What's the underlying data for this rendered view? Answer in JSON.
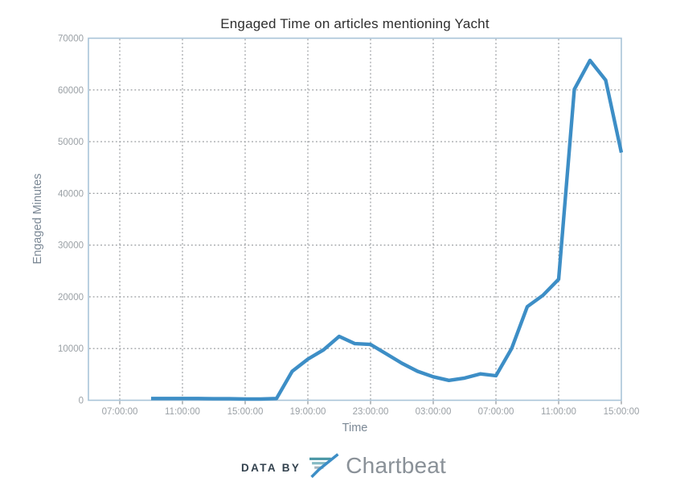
{
  "chart_data": {
    "type": "line",
    "title": "Engaged Time on articles mentioning Yacht",
    "xlabel": "Time",
    "ylabel": "Engaged Minutes",
    "ylim": [
      0,
      70000
    ],
    "y_tick_step": 10000,
    "y_tick_labels": [
      "0",
      "10000",
      "20000",
      "30000",
      "40000",
      "50000",
      "60000",
      "70000"
    ],
    "x_domain_hours": [
      5,
      39
    ],
    "x_ticks": [
      {
        "hour": 7,
        "label": "07:00:00"
      },
      {
        "hour": 11,
        "label": "11:00:00"
      },
      {
        "hour": 15,
        "label": "15:00:00"
      },
      {
        "hour": 19,
        "label": "19:00:00"
      },
      {
        "hour": 23,
        "label": "23:00:00"
      },
      {
        "hour": 27,
        "label": "03:00:00"
      },
      {
        "hour": 31,
        "label": "07:00:00"
      },
      {
        "hour": 35,
        "label": "11:00:00"
      },
      {
        "hour": 39,
        "label": "15:00:00"
      }
    ],
    "grid": "dotted, both axes, at every labeled tick",
    "legend_position": "none",
    "series": [
      {
        "name": "Engaged Minutes",
        "color": "#3d8ec6",
        "times": [
          "09:00:00",
          "10:00:00",
          "11:00:00",
          "12:00:00",
          "13:00:00",
          "14:00:00",
          "15:00:00",
          "16:00:00",
          "17:00:00",
          "18:00:00",
          "19:00:00",
          "20:00:00",
          "21:00:00",
          "22:00:00",
          "23:00:00",
          "00:00:00",
          "01:00:00",
          "02:00:00",
          "03:00:00",
          "04:00:00",
          "05:00:00",
          "06:00:00",
          "07:00:00",
          "08:00:00",
          "09:00:00",
          "10:00:00",
          "11:00:00",
          "12:00:00",
          "13:00:00",
          "14:00:00",
          "15:00:00"
        ],
        "hours": [
          9,
          10,
          11,
          12,
          13,
          14,
          15,
          16,
          17,
          18,
          19,
          20,
          21,
          22,
          23,
          24,
          25,
          26,
          27,
          28,
          29,
          30,
          31,
          32,
          33,
          34,
          35,
          36,
          37,
          38,
          39
        ],
        "values": [
          350,
          350,
          350,
          350,
          300,
          300,
          250,
          250,
          350,
          5600,
          7950,
          9750,
          12350,
          10950,
          10800,
          8970,
          7150,
          5600,
          4550,
          3850,
          4300,
          5100,
          4750,
          10000,
          18100,
          20300,
          23400,
          60100,
          65700,
          61900,
          47900
        ]
      }
    ]
  },
  "branding": {
    "prefix": "DATA BY",
    "brand_name": "Chartbeat",
    "logo_icon": "chartbeat-paper-plane-icon"
  },
  "colors": {
    "series_line": "#3d8ec6",
    "plot_border": "#a9c4d8",
    "gridline": "#8a8e92",
    "tick_label_text": "#9aa0a5",
    "axis_title_text": "#7b8895",
    "chart_title_text": "#2e2e2e",
    "brand_prefix_text": "#33424e",
    "brand_name_text": "#8a9198",
    "logo_stripe_top": "#4a97a5",
    "logo_stripe_mid": "#85bac3",
    "logo_stripe_bottom": "#a3b5bd",
    "logo_plane_stroke": "#3d8ec6"
  }
}
